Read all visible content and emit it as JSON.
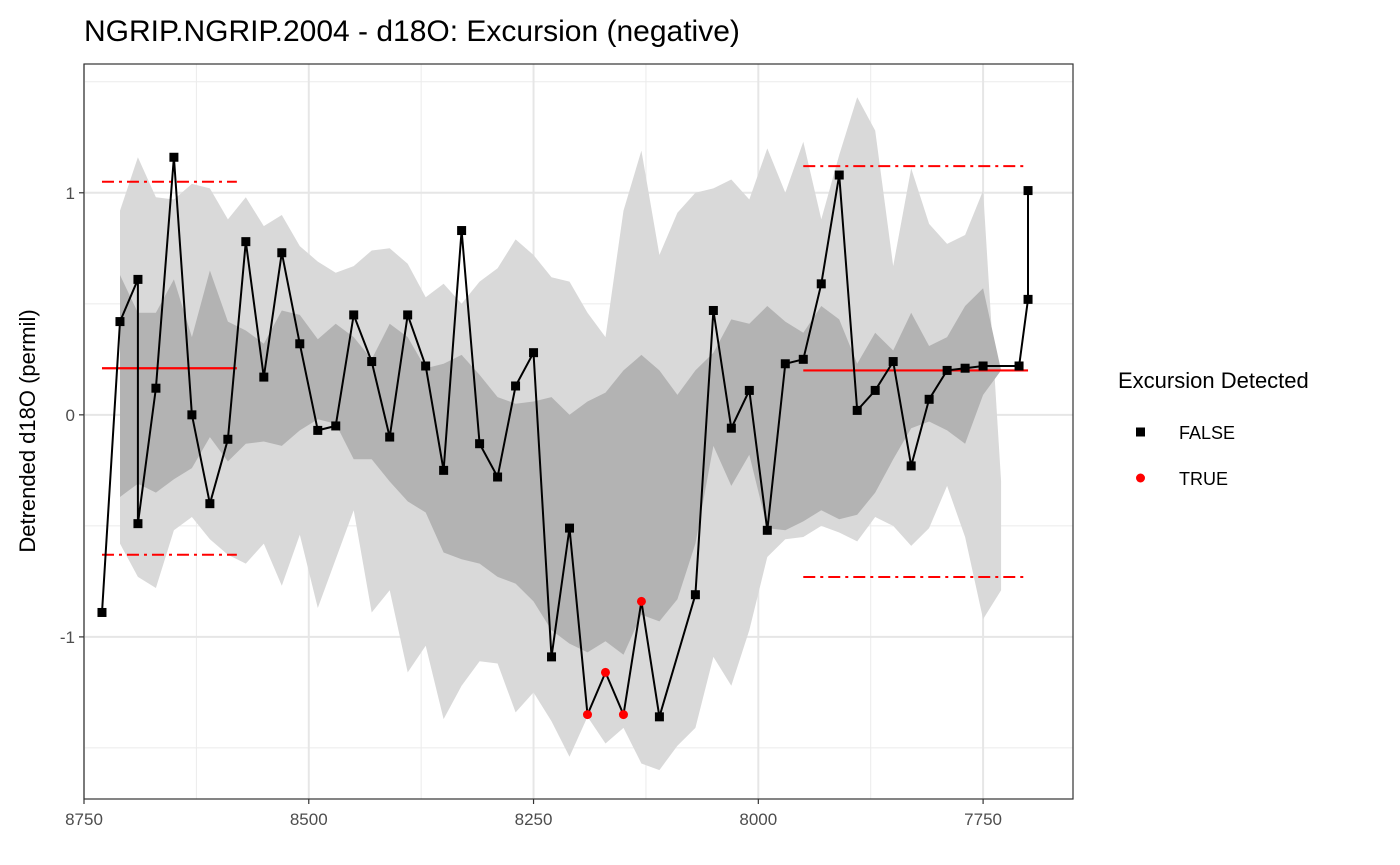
{
  "chart_data": {
    "type": "line",
    "title": "NGRIP.NGRIP.2004 - d18O: Excursion (negative)",
    "xlabel": "",
    "ylabel": "Detrended d18O (permil)",
    "x_reversed": true,
    "xlim": [
      8750,
      7650
    ],
    "ylim": [
      -1.73,
      1.58
    ],
    "x_ticks": [
      8750,
      8500,
      8250,
      8000,
      7750
    ],
    "x_tick_labels": [
      "8750",
      "8500",
      "8250",
      "8000",
      "7750"
    ],
    "y_ticks": [
      1,
      0,
      -1
    ],
    "y_tick_labels": [
      "1",
      "0",
      "-1"
    ],
    "grid": true,
    "legend": {
      "title": "Excursion Detected",
      "placement": "right",
      "entries": [
        {
          "label": "FALSE",
          "marker": "square",
          "color": "#000000"
        },
        {
          "label": "TRUE",
          "marker": "circle",
          "color": "#ff0000"
        }
      ]
    },
    "colors": {
      "line": "#000000",
      "point_false": "#000000",
      "point_true": "#ff0000",
      "threshold": "#ff0000",
      "outer_band": "#d9d9d9",
      "inner_band": "#b3b3b3"
    },
    "series": {
      "x": [
        8730,
        8710,
        8690,
        8690,
        8670,
        8650,
        8630,
        8610,
        8590,
        8570,
        8550,
        8530,
        8510,
        8490,
        8470,
        8450,
        8430,
        8410,
        8390,
        8370,
        8350,
        8330,
        8310,
        8290,
        8270,
        8250,
        8230,
        8210,
        8190,
        8170,
        8150,
        8130,
        8110,
        8070,
        8050,
        8030,
        8010,
        7990,
        7970,
        7950,
        7930,
        7910,
        7890,
        7870,
        7850,
        7830,
        7810,
        7790,
        7770,
        7750,
        7710,
        7700,
        7700
      ],
      "y": [
        -0.89,
        0.42,
        0.61,
        -0.49,
        0.12,
        1.16,
        0.0,
        -0.4,
        -0.11,
        0.78,
        0.17,
        0.73,
        0.32,
        -0.07,
        -0.05,
        0.45,
        0.24,
        -0.1,
        0.45,
        0.22,
        -0.25,
        0.83,
        -0.13,
        -0.28,
        0.13,
        0.28,
        -1.09,
        -0.51,
        -1.35,
        -1.16,
        -1.35,
        -0.84,
        -1.36,
        -0.81,
        0.47,
        -0.06,
        0.11,
        -0.52,
        0.23,
        0.25,
        0.59,
        1.08,
        0.02,
        0.11,
        0.24,
        -0.23,
        0.07,
        0.2,
        0.21,
        0.22,
        0.22,
        0.52,
        1.01
      ],
      "excursion": [
        false,
        false,
        false,
        false,
        false,
        false,
        false,
        false,
        false,
        false,
        false,
        false,
        false,
        false,
        false,
        false,
        false,
        false,
        false,
        false,
        false,
        false,
        false,
        false,
        false,
        false,
        false,
        false,
        true,
        true,
        true,
        true,
        false,
        false,
        false,
        false,
        false,
        false,
        false,
        false,
        false,
        false,
        false,
        false,
        false,
        false,
        false,
        false,
        false,
        false,
        false,
        false,
        false
      ]
    },
    "bands": {
      "x": [
        8710,
        8690,
        8670,
        8650,
        8630,
        8610,
        8590,
        8570,
        8550,
        8530,
        8510,
        8490,
        8470,
        8450,
        8430,
        8410,
        8390,
        8370,
        8350,
        8330,
        8310,
        8290,
        8270,
        8250,
        8230,
        8210,
        8190,
        8170,
        8150,
        8130,
        8110,
        8090,
        8070,
        8050,
        8030,
        8010,
        7990,
        7970,
        7950,
        7930,
        7910,
        7890,
        7870,
        7850,
        7830,
        7810,
        7790,
        7770,
        7750,
        7730
      ],
      "outer_upper": [
        0.92,
        1.16,
        0.98,
        0.97,
        1.04,
        1.02,
        0.88,
        0.98,
        0.85,
        0.9,
        0.76,
        0.69,
        0.64,
        0.67,
        0.74,
        0.75,
        0.68,
        0.53,
        0.59,
        0.5,
        0.6,
        0.66,
        0.79,
        0.72,
        0.62,
        0.6,
        0.46,
        0.35,
        0.92,
        1.19,
        0.72,
        0.91,
        1.0,
        1.02,
        1.06,
        0.97,
        1.2,
        1.0,
        1.23,
        0.88,
        1.17,
        1.43,
        1.28,
        0.67,
        1.11,
        0.86,
        0.77,
        0.81,
        1.01,
        -0.3
      ],
      "inner_upper": [
        0.63,
        0.46,
        0.46,
        0.61,
        0.35,
        0.65,
        0.42,
        0.38,
        0.32,
        0.47,
        0.45,
        0.34,
        0.41,
        0.35,
        0.25,
        0.41,
        0.35,
        0.21,
        0.23,
        0.27,
        0.18,
        0.08,
        0.05,
        0.06,
        0.08,
        0.0,
        0.06,
        0.1,
        0.2,
        0.27,
        0.2,
        0.09,
        0.2,
        0.28,
        0.43,
        0.41,
        0.49,
        0.42,
        0.37,
        0.49,
        0.43,
        0.23,
        0.37,
        0.29,
        0.46,
        0.31,
        0.35,
        0.49,
        0.57,
        0.2
      ],
      "inner_lower": [
        -0.37,
        -0.31,
        -0.35,
        -0.29,
        -0.24,
        -0.1,
        -0.21,
        -0.13,
        -0.12,
        -0.14,
        -0.07,
        -0.02,
        -0.04,
        -0.2,
        -0.2,
        -0.3,
        -0.39,
        -0.44,
        -0.62,
        -0.65,
        -0.67,
        -0.73,
        -0.76,
        -0.84,
        -0.97,
        -1.03,
        -1.07,
        -1.02,
        -1.08,
        -0.9,
        -0.93,
        -0.83,
        -0.58,
        -0.14,
        -0.32,
        -0.18,
        -0.51,
        -0.52,
        -0.48,
        -0.43,
        -0.47,
        -0.45,
        -0.35,
        -0.2,
        -0.06,
        -0.03,
        -0.07,
        -0.13,
        0.09,
        0.2
      ],
      "outer_lower": [
        -0.58,
        -0.73,
        -0.78,
        -0.52,
        -0.46,
        -0.56,
        -0.63,
        -0.67,
        -0.58,
        -0.77,
        -0.54,
        -0.87,
        -0.65,
        -0.43,
        -0.89,
        -0.79,
        -1.16,
        -1.04,
        -1.37,
        -1.22,
        -1.11,
        -1.12,
        -1.34,
        -1.25,
        -1.38,
        -1.54,
        -1.36,
        -1.48,
        -1.41,
        -1.57,
        -1.6,
        -1.49,
        -1.41,
        -1.09,
        -1.22,
        -0.97,
        -0.64,
        -0.56,
        -0.55,
        -0.5,
        -0.53,
        -0.57,
        -0.46,
        -0.5,
        -0.59,
        -0.51,
        -0.32,
        -0.55,
        -0.92,
        -0.79
      ]
    },
    "segments": [
      {
        "x_start": 8730,
        "x_end": 8580,
        "mean": 0.21,
        "upper": 1.05,
        "lower": -0.63
      },
      {
        "x_start": 7950,
        "x_end": 7700,
        "mean": 0.2,
        "upper": 1.12,
        "lower": -0.73
      }
    ]
  }
}
